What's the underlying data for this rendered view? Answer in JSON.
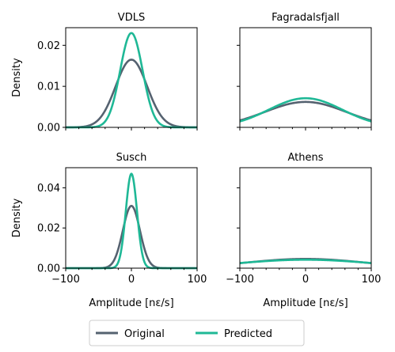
{
  "chart_data": [
    {
      "type": "line",
      "title": "VDLS",
      "xlabel": "",
      "ylabel": "Density",
      "xlim": [
        -100,
        100
      ],
      "ylim": [
        0,
        0.0243
      ],
      "yticks": [
        0.0,
        0.01,
        0.02
      ],
      "ytick_labels": [
        "0.00",
        "0.01",
        "0.02"
      ],
      "xticks": [
        -100,
        0,
        100
      ],
      "xtick_labels": [],
      "series": [
        {
          "name": "Original",
          "peak": 0.0165,
          "sigma": 24
        },
        {
          "name": "Predicted",
          "peak": 0.023,
          "sigma": 17
        }
      ]
    },
    {
      "type": "line",
      "title": "Fagradalsfjall",
      "xlabel": "",
      "ylabel": "",
      "xlim": [
        -100,
        100
      ],
      "ylim": [
        0,
        0.0243
      ],
      "yticks": [
        0.0,
        0.01,
        0.02
      ],
      "ytick_labels": [],
      "xticks": [
        -100,
        0,
        100
      ],
      "xtick_labels": [],
      "series": [
        {
          "name": "Original",
          "peak": 0.0062,
          "sigma": 62
        },
        {
          "name": "Predicted",
          "peak": 0.0071,
          "sigma": 56
        }
      ]
    },
    {
      "type": "line",
      "title": "Susch",
      "xlabel": "Amplitude [nε/s]",
      "ylabel": "Density",
      "xlim": [
        -100,
        100
      ],
      "ylim": [
        0,
        0.05
      ],
      "yticks": [
        0.0,
        0.02,
        0.04
      ],
      "ytick_labels": [
        "0.00",
        "0.02",
        "0.04"
      ],
      "xticks": [
        -100,
        0,
        100
      ],
      "xtick_labels": [
        "−100",
        "0",
        "100"
      ],
      "series": [
        {
          "name": "Original",
          "peak": 0.031,
          "sigma": 13
        },
        {
          "name": "Predicted",
          "peak": 0.047,
          "sigma": 8.5
        }
      ]
    },
    {
      "type": "line",
      "title": "Athens",
      "xlabel": "Amplitude [nε/s]",
      "ylabel": "",
      "xlim": [
        -100,
        100
      ],
      "ylim": [
        0,
        0.05
      ],
      "yticks": [
        0.0,
        0.02,
        0.04
      ],
      "ytick_labels": [],
      "xticks": [
        -100,
        0,
        100
      ],
      "xtick_labels": [
        "−100",
        "0",
        "100"
      ],
      "series": [
        {
          "name": "Original",
          "peak": 0.0046,
          "sigma": 90
        },
        {
          "name": "Predicted",
          "peak": 0.0042,
          "sigma": 100
        }
      ]
    }
  ],
  "legend": {
    "placement": "bottom-center",
    "entries": [
      {
        "label": "Original",
        "color": "#556270"
      },
      {
        "label": "Predicted",
        "color": "#1fb896"
      }
    ]
  },
  "colors": {
    "original": "#556270",
    "predicted": "#1fb896",
    "axes": "#000000"
  }
}
